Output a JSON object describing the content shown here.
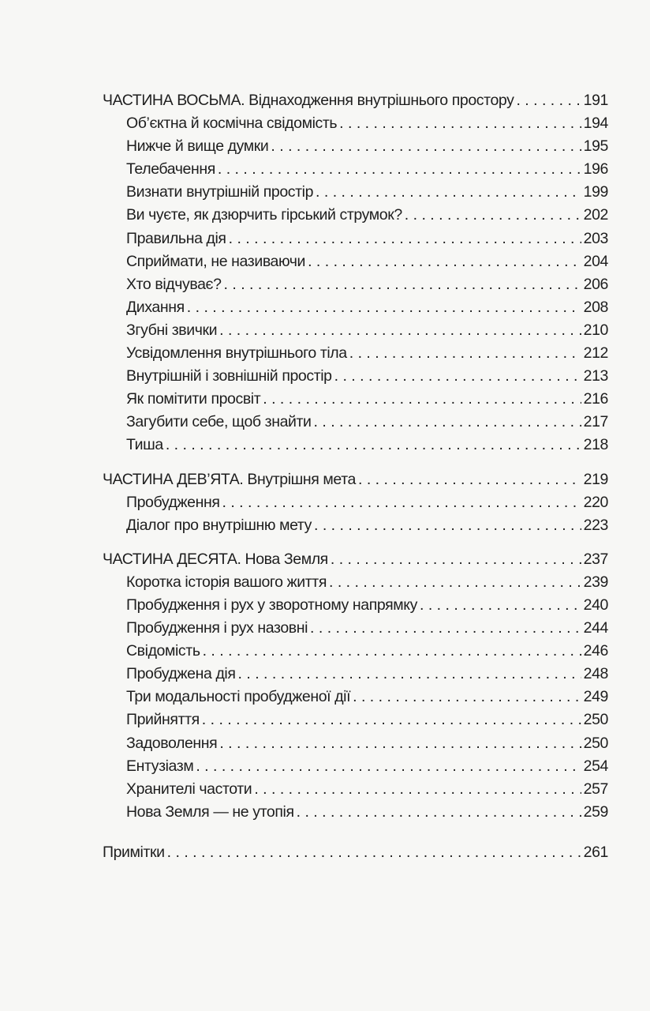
{
  "parts": [
    {
      "label": "ЧАСТИНА ВОСЬМА.",
      "title": "Віднаходження внутрішнього простору",
      "page": "191",
      "items": [
        {
          "title": "Об’єктна й космічна свідомість",
          "page": "194"
        },
        {
          "title": "Нижче й вище думки",
          "page": "195"
        },
        {
          "title": "Телебачення",
          "page": "196"
        },
        {
          "title": "Визнати внутрішній простір",
          "page": "199"
        },
        {
          "title": "Ви чуєте, як дзюрчить гірський струмок?",
          "page": "202"
        },
        {
          "title": "Правильна дія",
          "page": "203"
        },
        {
          "title": "Сприймати, не називаючи",
          "page": "204"
        },
        {
          "title": "Хто відчуває?",
          "page": "206"
        },
        {
          "title": "Дихання",
          "page": "208"
        },
        {
          "title": "Згубні звички",
          "page": "210"
        },
        {
          "title": "Усвідомлення внутрішнього тіла",
          "page": "212"
        },
        {
          "title": "Внутрішній і зовнішній простір",
          "page": "213"
        },
        {
          "title": "Як помітити просвіт",
          "page": "216"
        },
        {
          "title": "Загубити себе, щоб знайти",
          "page": "217"
        },
        {
          "title": "Тиша",
          "page": "218"
        }
      ]
    },
    {
      "label": "ЧАСТИНА ДЕВ’ЯТА.",
      "title": "Внутрішня мета",
      "page": "219",
      "items": [
        {
          "title": "Пробудження",
          "page": "220"
        },
        {
          "title": "Діалог про внутрішню мету",
          "page": "223"
        }
      ]
    },
    {
      "label": "ЧАСТИНА ДЕСЯТА.",
      "title": "Нова Земля",
      "page": "237",
      "items": [
        {
          "title": "Коротка історія вашого життя",
          "page": "239"
        },
        {
          "title": "Пробудження і рух у зворотному напрямку",
          "page": "240"
        },
        {
          "title": "Пробудження і рух назовні",
          "page": "244"
        },
        {
          "title": "Свідомість",
          "page": "246"
        },
        {
          "title": "Пробуджена дія",
          "page": "248"
        },
        {
          "title": "Три модальності пробудженої дії",
          "page": "249"
        },
        {
          "title": "Прийняття",
          "page": "250"
        },
        {
          "title": "Задоволення",
          "page": "250"
        },
        {
          "title": "Ентузіазм",
          "page": "254"
        },
        {
          "title": "Хранителі частоти",
          "page": "257"
        },
        {
          "title": "Нова Земля — не утопія",
          "page": "259"
        }
      ]
    }
  ],
  "notes": {
    "title": "Примітки",
    "page": "261"
  }
}
